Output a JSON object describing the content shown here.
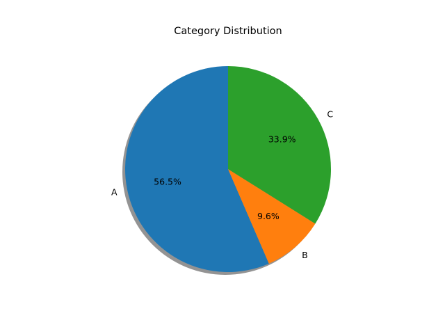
{
  "chart_data": {
    "type": "pie",
    "title": "Category Distribution",
    "categories": [
      "A",
      "B",
      "C"
    ],
    "values": [
      56.5,
      9.6,
      33.9
    ],
    "percent_labels": [
      "56.5%",
      "9.6%",
      "33.9%"
    ],
    "colors": [
      "#1f77b4",
      "#ff7f0e",
      "#2ca02c"
    ],
    "start_angle_deg": 90,
    "direction": "counterclockwise",
    "shadow": true,
    "legend": "none"
  }
}
